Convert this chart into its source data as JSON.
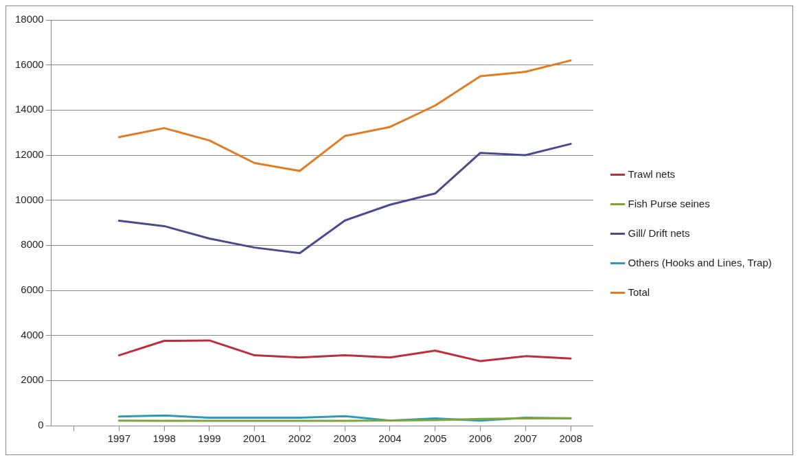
{
  "chart_data": {
    "type": "line",
    "categories": [
      null,
      "1997",
      "1998",
      "1999",
      "2001",
      "2002",
      "2003",
      "2004",
      "2005",
      "2006",
      "2007",
      "2008"
    ],
    "series": [
      {
        "name": "Trawl nets",
        "color": "#be2e3a",
        "values": [
          null,
          3120,
          3760,
          3780,
          3120,
          3020,
          3120,
          3020,
          3330,
          2860,
          3080,
          2980
        ]
      },
      {
        "name": "Fish Purse seines",
        "color": "#7fa53a",
        "values": [
          null,
          220,
          210,
          210,
          210,
          210,
          210,
          230,
          240,
          300,
          320,
          330
        ]
      },
      {
        "name": "Gill/ Drift nets",
        "color": "#4b4a8e",
        "values": [
          null,
          9090,
          8850,
          8300,
          7900,
          7650,
          9100,
          9800,
          10300,
          12100,
          12000,
          12500
        ]
      },
      {
        "name": "Others (Hooks and Lines, Trap)",
        "color": "#2a9bb8",
        "values": [
          null,
          400,
          450,
          350,
          350,
          350,
          420,
          220,
          320,
          220,
          350,
          320
        ]
      },
      {
        "name": "Total",
        "color": "#e07c22",
        "values": [
          null,
          12800,
          13200,
          12650,
          11650,
          11300,
          12850,
          13250,
          14200,
          15500,
          15700,
          16200
        ]
      }
    ],
    "ylim": [
      0,
      18000
    ],
    "yticks": [
      0,
      2000,
      4000,
      6000,
      8000,
      10000,
      12000,
      14000,
      16000,
      18000
    ],
    "grid": "y",
    "legend": "right",
    "marker": "none"
  }
}
